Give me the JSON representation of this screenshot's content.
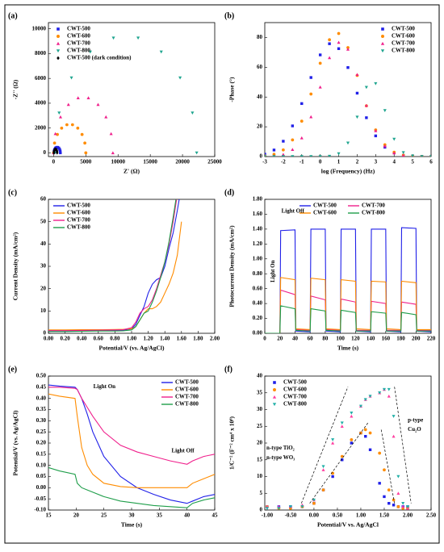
{
  "chart_data": [
    {
      "panel": "(a)",
      "type": "scatter",
      "xlabel": "Z' (Ω)",
      "ylabel": "-Z'' (Ω)",
      "xlim": [
        -800,
        25000
      ],
      "ylim": [
        -300,
        10500
      ],
      "xticks": [
        0,
        5000,
        10000,
        15000,
        20000,
        25000
      ],
      "yticks": [
        0,
        2000,
        4000,
        6000,
        8000,
        10000
      ],
      "legend": "top-left",
      "series": [
        {
          "name": "CWT-500",
          "color": "#2020e8",
          "marker": "square",
          "x": [
            50,
            80,
            167,
            300,
            463,
            637,
            800,
            933,
            1020,
            1050
          ],
          "values": [
            0,
            154,
            289,
            390,
            443,
            443,
            390,
            289,
            154,
            0
          ]
        },
        {
          "name": "CWT-600",
          "color": "#ff8c00",
          "marker": "circle",
          "x": [
            0,
            150,
            585,
            1250,
            2065,
            2935,
            3750,
            4415,
            4850,
            5000
          ],
          "values": [
            0,
            787,
            1479,
            1992,
            2266,
            2266,
            1992,
            1479,
            787,
            0
          ]
        },
        {
          "name": "CWT-700",
          "color": "#f0208c",
          "marker": "triangle",
          "x": [
            0,
            276,
            1076,
            2300,
            3800,
            5400,
            6900,
            8124,
            8924,
            9200
          ],
          "values": [
            0,
            1539,
            2894,
            3897,
            4433,
            4433,
            3897,
            2894,
            1539,
            0
          ]
        },
        {
          "name": "CWT-800",
          "color": "#1fa58f",
          "marker": "down-triangle",
          "x": [
            200,
            860,
            2774,
            5700,
            9286,
            13114,
            16700,
            19626,
            21540,
            22200
          ],
          "values": [
            0,
            3215,
            6044,
            8140,
            9259,
            9259,
            8140,
            6044,
            3215,
            0
          ]
        },
        {
          "name": "CWT-500 (dark condition)",
          "color": "#000000",
          "marker": "diamond",
          "x": [
            50,
            65,
            109,
            175,
            256,
            344,
            425,
            491,
            535,
            550
          ],
          "values": [
            0,
            103,
            193,
            260,
            296,
            296,
            260,
            193,
            103,
            0
          ]
        }
      ]
    },
    {
      "panel": "(b)",
      "type": "scatter",
      "xlabel": "log (Frequency) (Hz)",
      "ylabel": "-Phase (°)",
      "xlim": [
        -3,
        6
      ],
      "ylim": [
        0,
        90
      ],
      "xticks": [
        -3,
        -2,
        -1,
        0,
        1,
        2,
        3,
        4,
        5,
        6
      ],
      "yticks": [
        0,
        20,
        40,
        60,
        80
      ],
      "legend": "top-right",
      "x": [
        -3,
        -2.5,
        -2,
        -1.5,
        -1,
        -0.5,
        0,
        0.5,
        1,
        1.5,
        2,
        2.5,
        3,
        3.5,
        4,
        4.5,
        5,
        5.5,
        6
      ],
      "series": [
        {
          "name": "CWT-500",
          "color": "#2020e8",
          "marker": "square",
          "values": [
            1.6,
            4.4,
            10.3,
            20.6,
            35.6,
            53.1,
            68.3,
            75.8,
            72.5,
            59.8,
            42.6,
            26.1,
            13.9,
            6.3,
            2.5,
            0.8,
            0.3,
            0.1,
            0
          ]
        },
        {
          "name": "CWT-600",
          "color": "#ff8c00",
          "marker": "circle",
          "values": [
            0.4,
            1.5,
            4.5,
            11.2,
            23.8,
            42.0,
            62.7,
            78.5,
            82.7,
            73.2,
            54.5,
            34.1,
            17.9,
            7.9,
            2.9,
            0.9,
            0.3,
            0.1,
            0
          ]
        },
        {
          "name": "CWT-700",
          "color": "#f0208c",
          "marker": "triangle",
          "values": [
            0.1,
            0.4,
            1.4,
            4.7,
            12.5,
            26.7,
            46.7,
            66.4,
            76.7,
            72.1,
            55.1,
            34.3,
            17.3,
            7.1,
            2.4,
            0.7,
            0.2,
            0,
            0
          ]
        },
        {
          "name": "CWT-800",
          "color": "#1fa58f",
          "marker": "down-triangle",
          "values": [
            0,
            0,
            0,
            0,
            0,
            0,
            0,
            0.2,
            1.9,
            9.1,
            26.5,
            46.5,
            49.0,
            30.9,
            11.7,
            2.7,
            0.4,
            0,
            0
          ]
        }
      ]
    },
    {
      "panel": "(c)",
      "type": "line",
      "xlabel": "Potential/V (vs. Ag/AgCl)",
      "ylabel": "Current Density (mA/cm²)",
      "xlim": [
        0,
        2
      ],
      "ylim": [
        0,
        60
      ],
      "xticks": [
        {
          "value": 0,
          "label": "0.00"
        },
        {
          "value": 0.2,
          "label": "0.20"
        },
        {
          "value": 0.4,
          "label": "0.40"
        },
        {
          "value": 0.6,
          "label": "0.60"
        },
        {
          "value": 0.8,
          "label": "0.80"
        },
        {
          "value": 1,
          "label": "1.00"
        },
        {
          "value": 1.2,
          "label": "1.20"
        },
        {
          "value": 1.4,
          "label": "1.40"
        },
        {
          "value": 1.6,
          "label": "1.60"
        },
        {
          "value": 1.8,
          "label": "1.80"
        },
        {
          "value": 2,
          "label": "2.00"
        }
      ],
      "yticks": [
        0,
        10,
        20,
        30,
        40,
        50,
        60
      ],
      "legend": "top-left",
      "x": [
        0,
        0.2,
        0.4,
        0.6,
        0.8,
        0.9,
        1.0,
        1.05,
        1.1,
        1.15,
        1.2,
        1.25,
        1.3,
        1.35,
        1.4,
        1.45,
        1.5,
        1.55,
        1.6
      ],
      "series": [
        {
          "name": "CWT-500",
          "color": "#2020e8",
          "values": [
            1,
            1,
            1.1,
            1.2,
            1.3,
            1.4,
            2,
            4,
            8,
            12,
            18,
            22,
            24,
            25,
            30,
            38,
            45,
            55,
            66
          ]
        },
        {
          "name": "CWT-600",
          "color": "#ff8c00",
          "values": [
            1.5,
            1.5,
            1.6,
            1.6,
            1.7,
            1.8,
            2,
            3,
            6,
            9,
            11,
            11,
            12,
            14,
            18,
            22,
            27,
            35,
            50
          ]
        },
        {
          "name": "CWT-700",
          "color": "#f0208c",
          "values": [
            1.2,
            1.2,
            1.3,
            1.4,
            1.5,
            1.6,
            2.5,
            5,
            9,
            11,
            12,
            15,
            20,
            26,
            32,
            40,
            50,
            62,
            70
          ]
        },
        {
          "name": "CWT-800",
          "color": "#1f9e4a",
          "values": [
            0.8,
            0.8,
            0.9,
            1,
            1,
            1.1,
            1.5,
            3,
            6,
            9,
            10,
            14,
            19,
            25,
            32,
            41,
            52,
            64,
            72
          ]
        }
      ]
    },
    {
      "panel": "(d)",
      "type": "line",
      "xlabel": "Time (s)",
      "ylabel": "Photocurrent Density (mA/cm²)",
      "xlim": [
        0,
        220
      ],
      "ylim": [
        0,
        1.8
      ],
      "xticks": [
        0,
        20,
        40,
        60,
        80,
        100,
        120,
        140,
        160,
        180,
        200,
        220
      ],
      "yticks": [
        {
          "value": 0,
          "label": "0.00"
        },
        {
          "value": 0.2,
          "label": "0.20"
        },
        {
          "value": 0.4,
          "label": "0.40"
        },
        {
          "value": 0.6,
          "label": "0.60"
        },
        {
          "value": 0.8,
          "label": "0.80"
        },
        {
          "value": 1,
          "label": "1.00"
        },
        {
          "value": 1.2,
          "label": "1.20"
        },
        {
          "value": 1.4,
          "label": "1.40"
        },
        {
          "value": 1.6,
          "label": "1.60"
        },
        {
          "value": 1.8,
          "label": "1.80"
        }
      ],
      "legend": "top-center",
      "legend_columns": 2,
      "annotations": [
        "Light Off",
        "Light On"
      ],
      "x": [
        0,
        20,
        21,
        40,
        41,
        60,
        61,
        80,
        81,
        100,
        101,
        120,
        121,
        140,
        141,
        160,
        161,
        180,
        181,
        200,
        201,
        220
      ],
      "series": [
        {
          "name": "CWT-500",
          "color": "#2020e8",
          "values": [
            0,
            0,
            1.38,
            1.39,
            0.03,
            0.02,
            1.4,
            1.4,
            0.03,
            0.02,
            1.4,
            1.4,
            0.03,
            0.02,
            1.4,
            1.4,
            0.03,
            0.02,
            1.42,
            1.41,
            0.03,
            0.02
          ]
        },
        {
          "name": "CWT-700",
          "color": "#f0208c",
          "values": [
            0,
            0,
            0.58,
            0.52,
            0.05,
            0.04,
            0.5,
            0.45,
            0.05,
            0.04,
            0.46,
            0.42,
            0.04,
            0.04,
            0.43,
            0.4,
            0.04,
            0.04,
            0.42,
            0.39,
            0.04,
            0.04
          ]
        },
        {
          "name": "CWT-600",
          "color": "#ff8c00",
          "values": [
            0,
            0,
            0.75,
            0.72,
            0.06,
            0.05,
            0.74,
            0.72,
            0.06,
            0.05,
            0.72,
            0.7,
            0.06,
            0.05,
            0.7,
            0.69,
            0.06,
            0.05,
            0.7,
            0.68,
            0.05,
            0.05
          ]
        },
        {
          "name": "CWT-800",
          "color": "#1f9e4a",
          "values": [
            0,
            0,
            0.37,
            0.33,
            0.04,
            0.03,
            0.33,
            0.3,
            0.04,
            0.03,
            0.31,
            0.28,
            0.03,
            0.03,
            0.29,
            0.27,
            0.03,
            0.03,
            0.28,
            0.25,
            0.03,
            0.03
          ]
        }
      ]
    },
    {
      "panel": "(e)",
      "type": "line",
      "xlabel": "Time (s)",
      "ylabel": "Potential/V (vs. Ag/AgCl)",
      "xlim": [
        15,
        45
      ],
      "ylim": [
        -0.1,
        0.5
      ],
      "xticks": [
        15,
        20,
        25,
        30,
        35,
        40,
        45
      ],
      "yticks": [
        {
          "value": -0.1,
          "label": "-0.10"
        },
        -0.05,
        {
          "value": 0,
          "label": "0.00"
        },
        0.05,
        {
          "value": 0.1,
          "label": "0.10"
        },
        0.15,
        {
          "value": 0.2,
          "label": "0.20"
        },
        0.25,
        {
          "value": 0.3,
          "label": "0.30"
        },
        0.35,
        {
          "value": 0.4,
          "label": "0.40"
        },
        0.45,
        {
          "value": 0.5,
          "label": "0.50"
        }
      ],
      "legend": "top-right",
      "annotations": [
        "Light On",
        "Light Off"
      ],
      "x": [
        15,
        17,
        19.8,
        20.2,
        21,
        22,
        23,
        25,
        28,
        31,
        34,
        37,
        40,
        41,
        43,
        45
      ],
      "series": [
        {
          "name": "CWT-500",
          "color": "#2020e8",
          "values": [
            0.46,
            0.455,
            0.45,
            0.44,
            0.4,
            0.33,
            0.25,
            0.14,
            0.05,
            0.0,
            -0.03,
            -0.055,
            -0.07,
            -0.06,
            -0.04,
            -0.03
          ]
        },
        {
          "name": "CWT-600",
          "color": "#ff8c00",
          "values": [
            0.42,
            0.41,
            0.4,
            0.32,
            0.18,
            0.1,
            0.06,
            0.02,
            0.005,
            0.0,
            0.0,
            0.0,
            0.0,
            0.02,
            0.04,
            0.06
          ]
        },
        {
          "name": "CWT-700",
          "color": "#f0208c",
          "values": [
            0.45,
            0.45,
            0.445,
            0.44,
            0.4,
            0.36,
            0.32,
            0.25,
            0.19,
            0.16,
            0.14,
            0.12,
            0.105,
            0.12,
            0.14,
            0.15
          ]
        },
        {
          "name": "CWT-800",
          "color": "#1f9e4a",
          "values": [
            0.09,
            0.075,
            0.06,
            0.02,
            0.0,
            -0.01,
            -0.02,
            -0.04,
            -0.06,
            -0.07,
            -0.08,
            -0.085,
            -0.09,
            -0.07,
            -0.055,
            -0.045
          ]
        }
      ]
    },
    {
      "panel": "(f)",
      "type": "scatter",
      "xlabel": "Potential/V vs. Ag/AgCl",
      "ylabel": "1/C⁻² (F⁻² cm⁴ x 10⁸)",
      "xlim": [
        -1.05,
        2.5
      ],
      "ylim": [
        0,
        40
      ],
      "xticks": [
        {
          "value": -1,
          "label": "-1.00"
        },
        {
          "value": -0.5,
          "label": "-0.50"
        },
        {
          "value": 0,
          "label": "0.00"
        },
        {
          "value": 0.5,
          "label": "0.50"
        },
        {
          "value": 1,
          "label": "1.00"
        },
        {
          "value": 1.5,
          "label": "1.50"
        },
        {
          "value": 2,
          "label": "2.00"
        },
        {
          "value": 2.5,
          "label": "2.50"
        }
      ],
      "yticks": [
        0,
        5,
        10,
        15,
        20,
        25,
        30,
        35,
        40
      ],
      "legend": "top-left",
      "annotations": [
        "n-type TiO₂",
        "n-type WO₃",
        "p-type",
        "Cu₂O"
      ],
      "x": [
        -1.0,
        -0.75,
        -0.5,
        -0.25,
        0,
        0.2,
        0.4,
        0.6,
        0.8,
        1.0,
        1.1,
        1.2,
        1.4,
        1.5,
        1.6,
        1.7,
        1.8,
        1.9,
        2.0
      ],
      "series": [
        {
          "name": "CWT-500",
          "color": "#2020e8",
          "marker": "square",
          "values": [
            1,
            1,
            1,
            1,
            2,
            6,
            10,
            15,
            20,
            23,
            22,
            18,
            8,
            4,
            2,
            1.5,
            1,
            1,
            1
          ]
        },
        {
          "name": "CWT-600",
          "color": "#ff8c00",
          "marker": "circle",
          "values": [
            1,
            0.5,
            0.5,
            1,
            2,
            6,
            11,
            16,
            21,
            23,
            24,
            23,
            17,
            12,
            6,
            3,
            1,
            0.5,
            0.5
          ]
        },
        {
          "name": "CWT-700",
          "color": "#ff3fa0",
          "marker": "triangle",
          "values": [
            1,
            1,
            1,
            1.5,
            3,
            12,
            20,
            25,
            28,
            31,
            33,
            34,
            35,
            36,
            34,
            22,
            5,
            1,
            0.5
          ]
        },
        {
          "name": "CWT-800",
          "color": "#22b0a8",
          "marker": "down-triangle",
          "values": [
            0.5,
            0.5,
            1,
            1,
            3,
            13,
            21,
            26,
            29,
            31,
            33,
            34,
            35,
            36,
            36,
            28,
            10,
            2,
            1
          ]
        }
      ]
    }
  ]
}
